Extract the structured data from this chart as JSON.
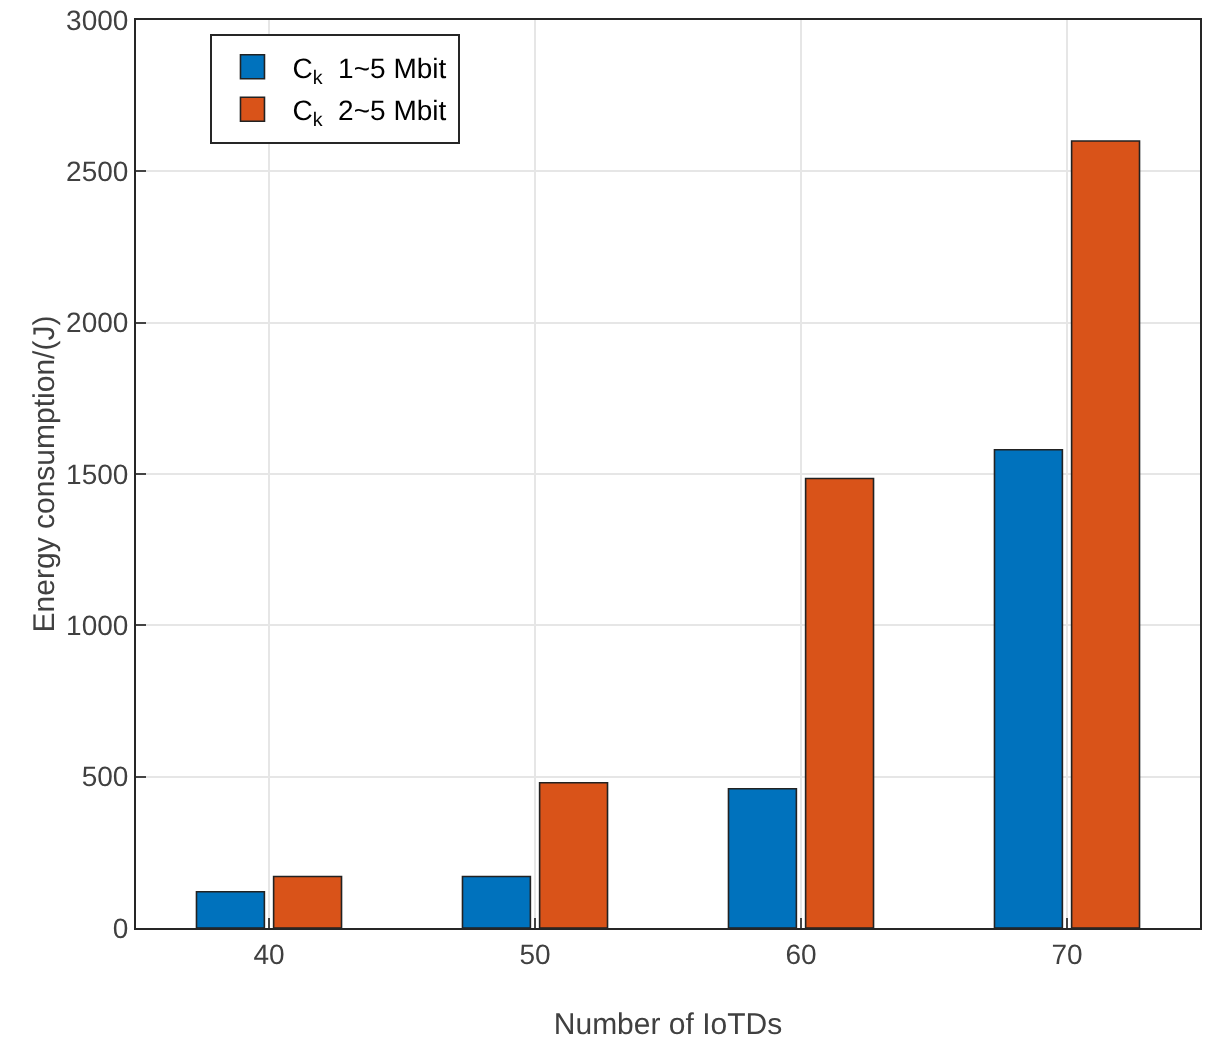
{
  "chart_data": {
    "type": "bar",
    "xlabel": "Number of IoTDs",
    "ylabel": "Energy consumption/(J)",
    "categories": [
      "40",
      "50",
      "60",
      "70"
    ],
    "series": [
      {
        "name": "C$_{k}$  1~5 Mbit",
        "color": "#0072bd",
        "values": [
          120,
          170,
          460,
          1580
        ]
      },
      {
        "name": "C$_{k}$  2~5 Mbit",
        "color": "#d95319",
        "values": [
          170,
          480,
          1485,
          2600
        ]
      }
    ],
    "ylim": [
      0,
      3000
    ],
    "yticks": [
      0,
      500,
      1000,
      1500,
      2000,
      2500,
      3000
    ],
    "grid": true,
    "legend": "top left"
  }
}
